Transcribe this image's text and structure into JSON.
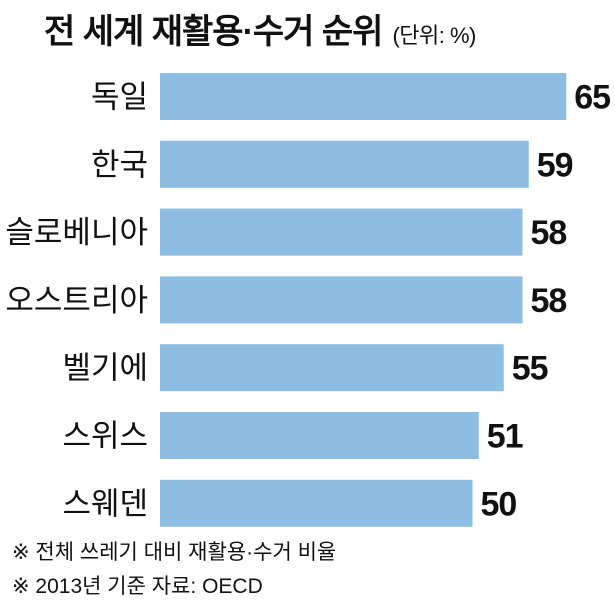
{
  "chart_data": {
    "type": "bar",
    "orientation": "horizontal",
    "title": "전 세계 재활용·수거 순위",
    "unit_label": "(단위: %)",
    "categories": [
      "독일",
      "한국",
      "슬로베니아",
      "오스트리아",
      "벨기에",
      "스위스",
      "스웨덴"
    ],
    "values": [
      65,
      59,
      58,
      58,
      55,
      51,
      50
    ],
    "data_labels": [
      "65",
      "59",
      "58",
      "58",
      "55",
      "51",
      "50"
    ],
    "bar_color": "#8dbde2",
    "grid": false,
    "legend": "none"
  },
  "notes": [
    "※ 전체 쓰레기 대비 재활용·수거 비율",
    "※ 2013년 기준   자료: OECD"
  ]
}
